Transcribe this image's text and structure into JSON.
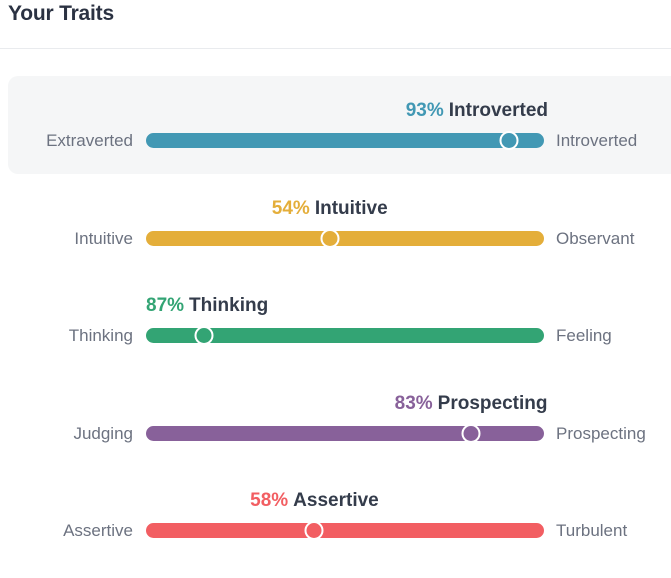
{
  "title": "Your Traits",
  "traits": [
    {
      "percent": "93%",
      "label": "Introverted",
      "left": "Extraverted",
      "right": "Introverted",
      "value": 0.93,
      "side": "right",
      "color": "#4298b4",
      "highlight": true
    },
    {
      "percent": "54%",
      "label": "Intuitive",
      "left": "Intuitive",
      "right": "Observant",
      "value": 0.54,
      "side": "left",
      "color": "#e4ae3a",
      "highlight": false
    },
    {
      "percent": "87%",
      "label": "Thinking",
      "left": "Thinking",
      "right": "Feeling",
      "value": 0.87,
      "side": "left",
      "color": "#33a474",
      "highlight": false
    },
    {
      "percent": "83%",
      "label": "Prospecting",
      "left": "Judging",
      "right": "Prospecting",
      "value": 0.83,
      "side": "right",
      "color": "#88619a",
      "highlight": false
    },
    {
      "percent": "58%",
      "label": "Assertive",
      "left": "Assertive",
      "right": "Turbulent",
      "value": 0.58,
      "side": "left",
      "color": "#f25e62",
      "highlight": false
    }
  ]
}
